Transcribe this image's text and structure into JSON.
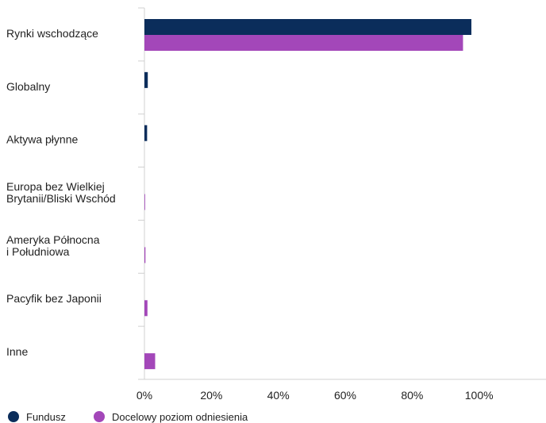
{
  "chart_data": {
    "type": "bar",
    "orientation": "horizontal",
    "categories": [
      [
        "Rynki wschodzące"
      ],
      [
        "Globalny"
      ],
      [
        "Aktywa płynne"
      ],
      [
        "Europa bez Wielkiej",
        "Brytanii/Bliski Wschód"
      ],
      [
        "Ameryka Północna",
        "i Południowa"
      ],
      [
        "Pacyfik bez Japonii"
      ],
      [
        "Inne"
      ]
    ],
    "series": [
      {
        "name": "Fundusz",
        "color": "#0b2d5b",
        "values": [
          97.7,
          1.0,
          0.8,
          0,
          0,
          0,
          0
        ]
      },
      {
        "name": "Docelowy poziom odniesienia",
        "color": "#a347b9",
        "values": [
          95.2,
          0,
          0,
          0.2,
          0.3,
          0.9,
          3.2
        ]
      }
    ],
    "xlim": [
      0,
      120
    ],
    "xticks": [
      "0%",
      "20%",
      "40%",
      "60%",
      "80%",
      "100%"
    ],
    "tick_values": [
      0,
      20,
      40,
      60,
      80,
      100
    ],
    "legend_position": "bottom-left",
    "grid": false
  }
}
